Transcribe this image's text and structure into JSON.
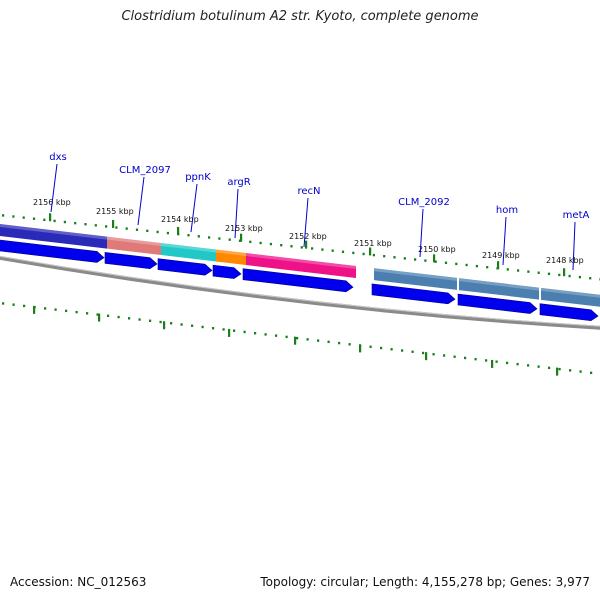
{
  "title": "Clostridium botulinum A2 str. Kyoto, complete genome",
  "footer": {
    "accession": "Accession: NC_012563",
    "summary": "Topology: circular; Length: 4,155,278 bp; Genes: 3,977"
  },
  "colors": {
    "forward_arrow": "#0000ee",
    "tick": "#1a7f1a",
    "backbone": "#7a7a7a",
    "gene_label": "#0000cc"
  },
  "kbp_labels": [
    {
      "text": "2156 kbp"
    },
    {
      "text": "2155 kbp"
    },
    {
      "text": "2154 kbp"
    },
    {
      "text": "2153 kbp"
    },
    {
      "text": "2152 kbp"
    },
    {
      "text": "2151 kbp"
    },
    {
      "text": "2150 kbp"
    },
    {
      "text": "2149 kbp"
    },
    {
      "text": "2148 kbp"
    }
  ],
  "gene_labels": [
    {
      "name": "dxs"
    },
    {
      "name": "CLM_2097"
    },
    {
      "name": "ppnK"
    },
    {
      "name": "argR"
    },
    {
      "name": "recN"
    },
    {
      "name": "CLM_2092"
    },
    {
      "name": "hom"
    },
    {
      "name": "metA"
    }
  ],
  "feature_band": [
    {
      "color": "#2a2ab8"
    },
    {
      "color": "#e07a78"
    },
    {
      "color": "#22c8c8"
    },
    {
      "color": "#ff8800"
    },
    {
      "color": "#ee1188"
    },
    {
      "color": "#4a7fb0"
    },
    {
      "color": "#4a7fb0"
    },
    {
      "color": "#4a7fb0"
    }
  ]
}
